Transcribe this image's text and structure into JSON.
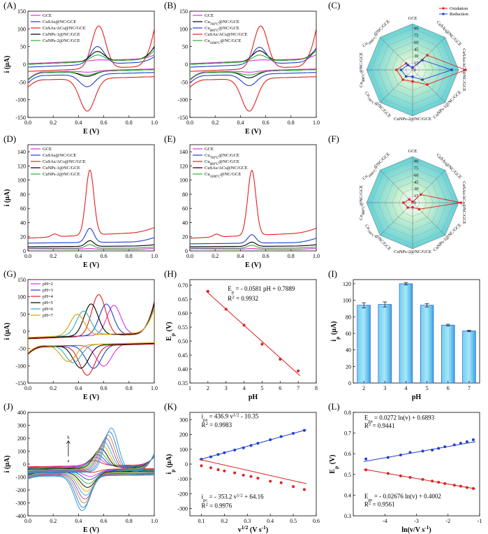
{
  "chart_data": [
    {
      "panel": "(A)",
      "type": "line",
      "xlabel": "E (V)",
      "ylabel": "i (μA)",
      "xlim": [
        0,
        1
      ],
      "ylim": [
        -150,
        150
      ],
      "xticks": [
        0,
        0.2,
        0.4,
        0.6,
        0.8,
        1.0
      ],
      "yticks": [
        -150,
        -100,
        -50,
        0,
        50,
        100,
        150
      ],
      "xtick_labels": [
        "0.0",
        "0.2",
        "0.4",
        "0.6",
        "0.8",
        "1.0"
      ],
      "legend": "top-left",
      "series": [
        {
          "name": "GCE",
          "color": "#e030e0",
          "kind": "cv",
          "p": {
            "ipa": 2,
            "ipc": -4,
            "ea": 0.55,
            "ec": 0.48,
            "base": 2,
            "tail": 10
          }
        },
        {
          "name": "CuSAs@NC/GCE",
          "color": "#1f3fd0",
          "kind": "cv",
          "p": {
            "ipa": 50,
            "ipc": -35,
            "ea": 0.55,
            "ec": 0.47,
            "base": -8,
            "tail": 15
          }
        },
        {
          "name": "CuSAs/ACs@NC/GCE",
          "color": "#e02020",
          "kind": "cv",
          "p": {
            "ipa": 120,
            "ipc": -92,
            "ea": 0.56,
            "ec": 0.47,
            "base": -20,
            "tail": 105
          }
        },
        {
          "name": "CuNPs-1@NC/GCE",
          "color": "#000000",
          "kind": "cv",
          "p": {
            "ipa": 28,
            "ipc": -14,
            "ea": 0.55,
            "ec": 0.47,
            "base": 0,
            "tail": 35
          }
        },
        {
          "name": "CuNPs-2@NC/GCE",
          "color": "#30b030",
          "kind": "cv",
          "p": {
            "ipa": 18,
            "ipc": -10,
            "ea": 0.55,
            "ec": 0.47,
            "base": 0,
            "tail": 25
          }
        }
      ]
    },
    {
      "panel": "(B)",
      "type": "line",
      "xlabel": "E (V)",
      "ylabel": "",
      "xlim": [
        0,
        1
      ],
      "ylim": [
        -150,
        150
      ],
      "xticks": [
        0,
        0.2,
        0.4,
        0.6,
        0.8,
        1.0
      ],
      "yticks": [
        -150,
        -100,
        -50,
        0,
        50,
        100,
        150
      ],
      "xtick_labels": [
        "0.0",
        "0.2",
        "0.4",
        "0.6",
        "0.8",
        "1.0"
      ],
      "legend": "top-left",
      "series": [
        {
          "name": "GCE",
          "color": "#e030e0",
          "kind": "cv",
          "p": {
            "ipa": 2,
            "ipc": -4,
            "ea": 0.55,
            "ec": 0.48,
            "base": 2,
            "tail": 10
          }
        },
        {
          "name": "Cu700°C@NC/GCE",
          "color": "#000000",
          "kind": "cv",
          "p": {
            "ipa": 30,
            "ipc": -18,
            "ea": 0.55,
            "ec": 0.47,
            "base": 0,
            "tail": 30
          }
        },
        {
          "name": "Cu800°C@NC/GCE",
          "color": "#1f3fd0",
          "kind": "cv",
          "p": {
            "ipa": 48,
            "ipc": -32,
            "ea": 0.55,
            "ec": 0.47,
            "base": -8,
            "tail": 40
          }
        },
        {
          "name": "CuSAs/ACs@NC/GCE",
          "color": "#e02020",
          "kind": "cv",
          "p": {
            "ipa": 120,
            "ipc": -92,
            "ea": 0.56,
            "ec": 0.47,
            "base": -20,
            "tail": 105
          }
        },
        {
          "name": "Cu1000°C@NC/GCE",
          "color": "#30b030",
          "kind": "cv",
          "p": {
            "ipa": 18,
            "ipc": -10,
            "ea": 0.55,
            "ec": 0.47,
            "base": 0,
            "tail": 25
          }
        }
      ]
    },
    {
      "panel": "(C)",
      "type": "radar",
      "rmax": 100,
      "rings": [
        0,
        15,
        30,
        45,
        60,
        75,
        90
      ],
      "ring_labels": [
        "0",
        "15",
        "30",
        "45",
        "60",
        "75",
        "90"
      ],
      "categories": [
        "GCE",
        "CuSAs@NC/GCE",
        "CuSAs/ACs@NC/GCE",
        "CuNPs-1@NC/GCE",
        "CuNPs-2@NC/GCE",
        "Cu700°C@NC/GCE",
        "Cu800°C@NC/GCE",
        "Cu1000°C@NC/GCE"
      ],
      "legend": "top-right",
      "series": [
        {
          "name": "Oxidation",
          "color": "#e02020",
          "values": [
            5,
            45,
            115,
            45,
            25,
            30,
            35,
            20
          ]
        },
        {
          "name": "Reduction",
          "color": "#1f3fd0",
          "values": [
            5,
            30,
            85,
            30,
            15,
            20,
            25,
            15
          ]
        }
      ]
    },
    {
      "panel": "(D)",
      "type": "line",
      "xlabel": "E (V)",
      "ylabel": "i (μA)",
      "xlim": [
        0,
        1
      ],
      "ylim": [
        0,
        150
      ],
      "xticks": [
        0,
        0.2,
        0.4,
        0.6,
        0.8,
        1.0
      ],
      "yticks": [
        0,
        20,
        40,
        60,
        80,
        100,
        120,
        140
      ],
      "xtick_labels": [
        "0.0",
        "0.2",
        "0.4",
        "0.6",
        "0.8",
        "1.0"
      ],
      "legend": "top-left",
      "series": [
        {
          "name": "GCE",
          "color": "#e030e0",
          "kind": "dpv",
          "p": {
            "h": 1,
            "b0": 3,
            "b1": 2
          }
        },
        {
          "name": "CuSAs@NC/GCE",
          "color": "#1f3fd0",
          "kind": "dpv",
          "p": {
            "h": 20,
            "b0": 11,
            "b1": 13
          }
        },
        {
          "name": "CuSAs/ACs@NC/GCE",
          "color": "#e02020",
          "kind": "dpv",
          "p": {
            "h": 92,
            "b0": 18,
            "b1": 27,
            "pre": 4
          }
        },
        {
          "name": "CuNPs-1@NC/GCE",
          "color": "#000000",
          "kind": "dpv",
          "p": {
            "h": 8,
            "b0": 6,
            "b1": 7
          }
        },
        {
          "name": "CuNPs-2@NC/GCE",
          "color": "#30b030",
          "kind": "dpv",
          "p": {
            "h": 5,
            "b0": 4,
            "b1": 4
          }
        }
      ]
    },
    {
      "panel": "(E)",
      "type": "line",
      "xlabel": "E (V)",
      "ylabel": "",
      "xlim": [
        0,
        1
      ],
      "ylim": [
        0,
        150
      ],
      "xticks": [
        0,
        0.2,
        0.4,
        0.6,
        0.8,
        1.0
      ],
      "yticks": [
        0,
        20,
        40,
        60,
        80,
        100,
        120,
        140
      ],
      "xtick_labels": [
        "0.0",
        "0.2",
        "0.4",
        "0.6",
        "0.8",
        "1.0"
      ],
      "legend": "top-left",
      "series": [
        {
          "name": "GCE",
          "color": "#e030e0",
          "kind": "dpv",
          "p": {
            "h": 1,
            "b0": 3,
            "b1": 2
          }
        },
        {
          "name": "Cu700°C@NC/GCE",
          "color": "#1f3fd0",
          "kind": "dpv",
          "p": {
            "h": 12,
            "b0": 10,
            "b1": 12
          }
        },
        {
          "name": "Cu800°C@NC/GCE",
          "color": "#e02020",
          "kind": "dpv",
          "p": {
            "h": 92,
            "b0": 18,
            "b1": 26,
            "pre": 4
          }
        },
        {
          "name": "CuSAs/ACs@NC/GCE",
          "color": "#000000",
          "kind": "dpv",
          "p": {
            "h": 6,
            "b0": 6,
            "b1": 7
          }
        },
        {
          "name": "Cu1000°C@NC/GCE",
          "color": "#30b030",
          "kind": "dpv",
          "p": {
            "h": 4,
            "b0": 4,
            "b1": 4
          }
        }
      ]
    },
    {
      "panel": "(F)",
      "type": "radar",
      "rmax": 100,
      "rings": [
        0,
        15,
        30,
        45,
        60,
        75,
        90
      ],
      "ring_labels": [
        "0",
        "15",
        "30",
        "45",
        "60",
        "75",
        "90"
      ],
      "categories": [
        "GCE",
        "CuSAs@NC/GCE",
        "CuSAs/ACs@NC/GCE",
        "CuNPs-1@NC/GCE",
        "CuNPs-2@NC/GCE",
        "Cu700°C@NC/GCE",
        "Cu800°C@NC/GCE",
        "Cu1000°C@NC/GCE"
      ],
      "series": [
        {
          "name": "Oxidation",
          "color": "#e02020",
          "values": [
            2,
            25,
            105,
            20,
            10,
            15,
            20,
            10
          ]
        }
      ]
    },
    {
      "panel": "(G)",
      "type": "line",
      "xlabel": "E (V)",
      "ylabel": "i (μA)",
      "xlim": [
        0,
        1
      ],
      "ylim": [
        -150,
        150
      ],
      "xticks": [
        0,
        0.2,
        0.4,
        0.6,
        0.8,
        1.0
      ],
      "yticks": [
        -150,
        -100,
        -50,
        0,
        50,
        100,
        150
      ],
      "xtick_labels": [
        "0.0",
        "0.2",
        "0.4",
        "0.6",
        "0.8",
        "1.0"
      ],
      "legend": "top-left",
      "series": [
        {
          "name": "pH=2",
          "color": "#e030e0",
          "kind": "cv",
          "p": {
            "ipa": 85,
            "ipc": -62,
            "ea": 0.68,
            "ec": 0.6,
            "base": -20,
            "tail": 80
          }
        },
        {
          "name": "pH=3",
          "color": "#1f3fd0",
          "kind": "cv",
          "p": {
            "ipa": 90,
            "ipc": -68,
            "ea": 0.62,
            "ec": 0.52,
            "base": -20,
            "tail": 85
          }
        },
        {
          "name": "pH=4",
          "color": "#e02020",
          "kind": "cv",
          "p": {
            "ipa": 120,
            "ipc": -85,
            "ea": 0.56,
            "ec": 0.47,
            "base": -22,
            "tail": 95
          }
        },
        {
          "name": "pH=5",
          "color": "#000000",
          "kind": "cv",
          "p": {
            "ipa": 92,
            "ipc": -66,
            "ea": 0.5,
            "ec": 0.42,
            "base": -20,
            "tail": 85
          }
        },
        {
          "name": "pH=6",
          "color": "#30b0b0",
          "kind": "cv",
          "p": {
            "ipa": 70,
            "ipc": -52,
            "ea": 0.44,
            "ec": 0.36,
            "base": -18,
            "tail": 75
          }
        },
        {
          "name": "pH=7",
          "color": "#e0a000",
          "kind": "cv",
          "p": {
            "ipa": 62,
            "ipc": -48,
            "ea": 0.39,
            "ec": 0.32,
            "base": -18,
            "tail": 70
          }
        }
      ]
    },
    {
      "panel": "(H)",
      "type": "scatter",
      "xlabel": "pH",
      "ylabel": "Ep (V)",
      "xlim": [
        1,
        8
      ],
      "ylim": [
        0.35,
        0.72
      ],
      "xticks": [
        1,
        2,
        3,
        4,
        5,
        6,
        7,
        8
      ],
      "yticks": [
        0.35,
        0.4,
        0.45,
        0.5,
        0.55,
        0.6,
        0.65,
        0.7
      ],
      "xtick_labels": [
        "1",
        "2",
        "3",
        "4",
        "5",
        "6",
        "7",
        "8"
      ],
      "ytick_labels": [
        "0.35",
        "0.40",
        "0.45",
        "0.50",
        "0.55",
        "0.60",
        "0.65",
        "0.70"
      ],
      "series": [
        {
          "name": "",
          "color": "#e02020",
          "x": [
            2,
            3,
            4,
            5,
            6,
            7
          ],
          "y": [
            0.678,
            0.614,
            0.557,
            0.489,
            0.435,
            0.393
          ],
          "fit": [
            -0.0581,
            0.7889
          ]
        }
      ],
      "annotations": [
        {
          "text": "Ep = - 0.0581 pH + 0.7889",
          "color": "#e02020",
          "x": 3.1,
          "y": 0.68
        },
        {
          "text": "R2 = 0.9932",
          "color": "#e02020",
          "x": 3.1,
          "y": 0.645
        }
      ]
    },
    {
      "panel": "(I)",
      "type": "bar",
      "xlabel": "pH",
      "ylabel": "ip (μA)",
      "categories": [
        "2",
        "3",
        "4",
        "5",
        "6",
        "7"
      ],
      "values": [
        94,
        95,
        120,
        94,
        70,
        63
      ],
      "errors": [
        3,
        3,
        1.5,
        2,
        1,
        0.8
      ],
      "ylim": [
        0,
        125
      ],
      "yticks": [
        0,
        20,
        40,
        60,
        80,
        100,
        120
      ]
    },
    {
      "panel": "(J)",
      "type": "line",
      "xlabel": "E (V)",
      "ylabel": "i (μA)",
      "xlim": [
        0,
        1
      ],
      "ylim": [
        -400,
        400
      ],
      "xticks": [
        0,
        0.2,
        0.4,
        0.6,
        0.8,
        1.0
      ],
      "yticks": [
        -400,
        -300,
        -200,
        -100,
        0,
        100,
        200,
        300,
        400
      ],
      "xtick_labels": [
        "0.0",
        "0.2",
        "0.4",
        "0.6",
        "0.8",
        "1.0"
      ],
      "arrow_labels": [
        "k",
        "a"
      ],
      "series_colors": [
        "#e02020",
        "#e030e0",
        "#1f3fd0",
        "#30b030",
        "#000000",
        "#e0a000",
        "#30b0b0",
        "#a040c0",
        "#c08040",
        "#2080e0",
        "#3090d0"
      ],
      "ipa_values": [
        40,
        70,
        95,
        120,
        150,
        180,
        210,
        245,
        275,
        305,
        340
      ],
      "ipc_values": [
        -25,
        -50,
        -70,
        -95,
        -120,
        -145,
        -170,
        -195,
        -220,
        -250,
        -270
      ]
    },
    {
      "panel": "(K)",
      "type": "scatter",
      "xlabel": "v1/2 (V s-1)",
      "ylabel": "ip (μA)",
      "xlim": [
        0.05,
        0.6
      ],
      "ylim": [
        -350,
        350
      ],
      "xticks": [
        0.1,
        0.2,
        0.3,
        0.4,
        0.5,
        0.6
      ],
      "yticks": [
        -300,
        -200,
        -100,
        0,
        100,
        200,
        300
      ],
      "xtick_labels": [
        "0.1",
        "0.2",
        "0.3",
        "0.4",
        "0.5",
        "0.6"
      ],
      "series": [
        {
          "name": "ipa",
          "color": "#1f3fd0",
          "x": [
            0.1,
            0.141,
            0.173,
            0.2,
            0.245,
            0.283,
            0.316,
            0.346,
            0.4,
            0.447,
            0.5,
            0.548
          ],
          "y": [
            33,
            49,
            65,
            77,
            95,
            110,
            126,
            141,
            165,
            186,
            208,
            228
          ],
          "fit": [
            436.9,
            -10.35
          ]
        },
        {
          "name": "ipc",
          "color": "#e02020",
          "x": [
            0.1,
            0.141,
            0.173,
            0.2,
            0.245,
            0.283,
            0.316,
            0.346,
            0.4,
            0.447,
            0.5,
            0.548
          ],
          "y": [
            -11,
            -25,
            -38,
            -46,
            -59,
            -75,
            -84,
            -95,
            -116,
            -126,
            -152,
            -172
          ],
          "fit": [
            -353.2,
            64.16
          ]
        }
      ],
      "annotations": [
        {
          "text": "ipa = 436.9 v1/2 - 10.35",
          "color": "#000000",
          "x": 0.1,
          "y": 310
        },
        {
          "text": "R2 = 0.9983",
          "color": "#000000",
          "x": 0.1,
          "y": 250
        },
        {
          "text": "ipc = - 353.2 v1/2 + 64.16",
          "color": "#000000",
          "x": 0.1,
          "y": -235
        },
        {
          "text": "R2 = 0.9976",
          "color": "#000000",
          "x": 0.1,
          "y": -295
        }
      ]
    },
    {
      "panel": "(L)",
      "type": "scatter",
      "xlabel": "ln(v/V s-1)",
      "ylabel": "Ep (V)",
      "xlim": [
        -5,
        -1
      ],
      "ylim": [
        0.3,
        0.8
      ],
      "xticks": [
        -4,
        -3,
        -2,
        -1
      ],
      "yticks": [
        0.3,
        0.4,
        0.5,
        0.6,
        0.7,
        0.8
      ],
      "xtick_labels": [
        "-4",
        "-3",
        "-2",
        "-1"
      ],
      "ytick_labels": [
        "0.3",
        "0.4",
        "0.5",
        "0.6",
        "0.7",
        "0.8"
      ],
      "series": [
        {
          "name": "Epa",
          "color": "#1f3fd0",
          "x": [
            -4.6,
            -3.9,
            -3.5,
            -3.2,
            -2.8,
            -2.5,
            -2.3,
            -2.1,
            -1.8,
            -1.6,
            -1.4,
            -1.2
          ],
          "y": [
            0.575,
            0.582,
            0.594,
            0.606,
            0.613,
            0.618,
            0.626,
            0.634,
            0.643,
            0.651,
            0.658,
            0.668
          ],
          "fit": [
            0.0272,
            0.6893
          ]
        },
        {
          "name": "Epc",
          "color": "#e02020",
          "x": [
            -4.6,
            -3.9,
            -3.5,
            -3.2,
            -2.8,
            -2.5,
            -2.3,
            -2.1,
            -1.8,
            -1.6,
            -1.4,
            -1.2
          ],
          "y": [
            0.522,
            0.505,
            0.493,
            0.486,
            0.476,
            0.468,
            0.462,
            0.456,
            0.448,
            0.443,
            0.437,
            0.432
          ],
          "fit": [
            -0.02676,
            0.4002
          ]
        }
      ],
      "annotations": [
        {
          "text": "Epa = 0.0272 ln(v) + 0.6893",
          "color": "#000000",
          "x": -4.65,
          "y": 0.765
        },
        {
          "text": "R2 = 0.9441",
          "color": "#000000",
          "x": -4.65,
          "y": 0.725
        },
        {
          "text": "Epc = - 0.02676 ln(v) + 0.4002",
          "color": "#000000",
          "x": -4.65,
          "y": 0.385
        },
        {
          "text": "R2 = 0.9561",
          "color": "#000000",
          "x": -4.65,
          "y": 0.345
        }
      ]
    }
  ]
}
